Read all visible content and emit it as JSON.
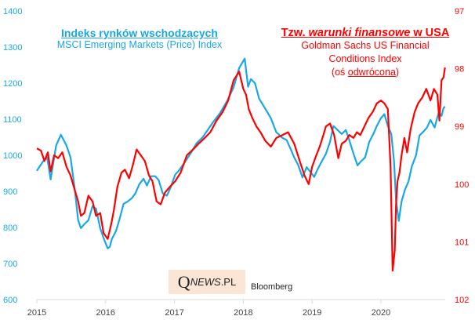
{
  "titles": {
    "left_heading": "Indeks rynków wschodzących",
    "left_sub": "MSCI Emerging Markets (Price) Index",
    "right_heading_prefix": "Tzw. ",
    "right_heading_italic": "warunki finansowe",
    "right_heading_suffix": " w USA",
    "right_sub_line1": "Goldman Sachs US Financial",
    "right_sub_line2": "Conditions Index",
    "right_sub_line3_prefix": "(oś ",
    "right_sub_line3_underlined": "odwrócona",
    "right_sub_line3_suffix": ")"
  },
  "logo": {
    "q": "Q",
    "news": "NEWS",
    "pl": ".PL"
  },
  "source": "Bloomberg",
  "colors": {
    "msci": "#1aa7e6",
    "gsfci": "#ff0000",
    "axis": "#d9d9d9"
  },
  "chart_data": {
    "type": "line",
    "title": "Indeks rynków wschodzących vs Tzw. warunki finansowe w USA",
    "xlabel": "",
    "x_ticks": [
      "2015",
      "2016",
      "2017",
      "2018",
      "2019",
      "2020"
    ],
    "xlim": [
      2015.0,
      2021.0
    ],
    "left_axis": {
      "label": "MSCI Emerging Markets (Price) Index",
      "ylim": [
        600,
        1400
      ],
      "ticks": [
        600,
        700,
        800,
        900,
        1000,
        1100,
        1200,
        1300,
        1400
      ]
    },
    "right_axis": {
      "label": "Goldman Sachs US Financial Conditions Index (oś odwrócona)",
      "ylim": [
        97,
        102
      ],
      "inverted": true,
      "ticks": [
        97,
        98,
        99,
        100,
        101,
        102
      ]
    },
    "grid": false,
    "series": [
      {
        "name": "MSCI Emerging Markets (Price) Index",
        "axis": "left",
        "x": [
          2015.0,
          2015.09,
          2015.15,
          2015.2,
          2015.28,
          2015.35,
          2015.43,
          2015.49,
          2015.55,
          2015.6,
          2015.64,
          2015.69,
          2015.75,
          2015.81,
          2015.86,
          2015.92,
          2015.97,
          2016.03,
          2016.06,
          2016.09,
          2016.15,
          2016.2,
          2016.26,
          2016.32,
          2016.38,
          2016.43,
          2016.49,
          2016.55,
          2016.6,
          2016.66,
          2016.72,
          2016.77,
          2016.83,
          2016.89,
          2016.94,
          2017.01,
          2017.07,
          2017.15,
          2017.24,
          2017.32,
          2017.41,
          2017.49,
          2017.57,
          2017.66,
          2017.77,
          2017.86,
          2017.94,
          2018.02,
          2018.07,
          2018.11,
          2018.17,
          2018.23,
          2018.32,
          2018.4,
          2018.48,
          2018.57,
          2018.63,
          2018.69,
          2018.74,
          2018.8,
          2018.86,
          2018.92,
          2018.97,
          2019.03,
          2019.08,
          2019.14,
          2019.2,
          2019.26,
          2019.31,
          2019.37,
          2019.43,
          2019.49,
          2019.54,
          2019.6,
          2019.66,
          2019.71,
          2019.77,
          2019.83,
          2019.89,
          2019.94,
          2020.0,
          2020.05,
          2020.1,
          2020.15,
          2020.19,
          2020.22,
          2020.26,
          2020.3,
          2020.35,
          2020.4,
          2020.45,
          2020.51,
          2020.56,
          2020.62,
          2020.67,
          2020.72,
          2020.78,
          2020.84,
          2020.88,
          2020.91,
          2020.93
        ],
        "values": [
          957,
          983,
          994,
          933,
          1027,
          1057,
          1027,
          994,
          907,
          820,
          798,
          809,
          820,
          859,
          852,
          798,
          770,
          742,
          746,
          768,
          790,
          822,
          865,
          872,
          881,
          894,
          920,
          935,
          916,
          942,
          942,
          931,
          894,
          888,
          909,
          946,
          959,
          981,
          1007,
          1033,
          1050,
          1072,
          1094,
          1116,
          1152,
          1189,
          1242,
          1268,
          1190,
          1211,
          1200,
          1157,
          1129,
          1103,
          1064,
          1048,
          1042,
          1016,
          994,
          972,
          939,
          967,
          955,
          940,
          961,
          983,
          1004,
          1037,
          1081,
          1070,
          1059,
          1070,
          1042,
          1005,
          972,
          983,
          994,
          1037,
          1059,
          1081,
          1103,
          1114,
          1081,
          1059,
          983,
          874,
          818,
          872,
          905,
          927,
          970,
          1000,
          1055,
          1066,
          1077,
          1098,
          1077,
          1120,
          1109,
          1131,
          1135
        ]
      },
      {
        "name": "Goldman Sachs US Financial Conditions Index",
        "axis": "right",
        "x": [
          2015.0,
          2015.06,
          2015.11,
          2015.16,
          2015.2,
          2015.25,
          2015.31,
          2015.37,
          2015.43,
          2015.49,
          2015.55,
          2015.6,
          2015.64,
          2015.69,
          2015.75,
          2015.81,
          2015.86,
          2015.92,
          2015.97,
          2016.03,
          2016.08,
          2016.12,
          2016.17,
          2016.23,
          2016.28,
          2016.34,
          2016.4,
          2016.45,
          2016.51,
          2016.57,
          2016.63,
          2016.68,
          2016.74,
          2016.8,
          2016.86,
          2016.93,
          2017.01,
          2017.09,
          2017.18,
          2017.27,
          2017.35,
          2017.44,
          2017.52,
          2017.61,
          2017.7,
          2017.78,
          2017.86,
          2017.94,
          2018.0,
          2018.04,
          2018.08,
          2018.13,
          2018.19,
          2018.25,
          2018.32,
          2018.4,
          2018.48,
          2018.57,
          2018.65,
          2018.74,
          2018.82,
          2018.89,
          2018.95,
          2019.0,
          2019.06,
          2019.11,
          2019.15,
          2019.2,
          2019.26,
          2019.32,
          2019.38,
          2019.43,
          2019.49,
          2019.54,
          2019.6,
          2019.65,
          2019.7,
          2019.76,
          2019.82,
          2019.88,
          2019.94,
          2020.0,
          2020.05,
          2020.1,
          2020.14,
          2020.17,
          2020.2,
          2020.22,
          2020.24,
          2020.27,
          2020.3,
          2020.34,
          2020.38,
          2020.43,
          2020.49,
          2020.54,
          2020.6,
          2020.66,
          2020.72,
          2020.77,
          2020.82,
          2020.85,
          2020.88,
          2020.91,
          2020.93
        ],
        "values": [
          99.38,
          99.42,
          99.6,
          99.45,
          99.78,
          99.5,
          99.55,
          99.45,
          99.7,
          99.85,
          100.1,
          100.3,
          100.55,
          100.5,
          100.2,
          100.3,
          100.55,
          100.5,
          100.85,
          100.95,
          100.7,
          100.45,
          100.05,
          99.8,
          99.75,
          99.9,
          99.65,
          99.4,
          99.5,
          99.6,
          99.85,
          99.95,
          100.3,
          100.35,
          100.15,
          100.05,
          99.95,
          99.8,
          99.5,
          99.4,
          99.3,
          99.2,
          99.1,
          98.9,
          98.75,
          98.55,
          98.2,
          98.05,
          98.35,
          98.45,
          98.7,
          98.85,
          99.0,
          99.1,
          99.25,
          99.35,
          99.2,
          99.15,
          99.1,
          99.3,
          99.6,
          99.85,
          100.0,
          99.7,
          99.5,
          99.35,
          99.2,
          99.0,
          98.95,
          99.15,
          99.55,
          99.3,
          99.25,
          99.15,
          99.2,
          99.1,
          99.15,
          99.0,
          98.85,
          98.75,
          98.6,
          98.55,
          98.6,
          98.7,
          99.7,
          101.5,
          101.15,
          100.35,
          99.95,
          99.8,
          99.5,
          99.2,
          99.45,
          99.05,
          98.75,
          98.6,
          98.5,
          98.35,
          98.55,
          98.35,
          98.45,
          98.9,
          98.2,
          98.15,
          97.98
        ]
      }
    ]
  }
}
